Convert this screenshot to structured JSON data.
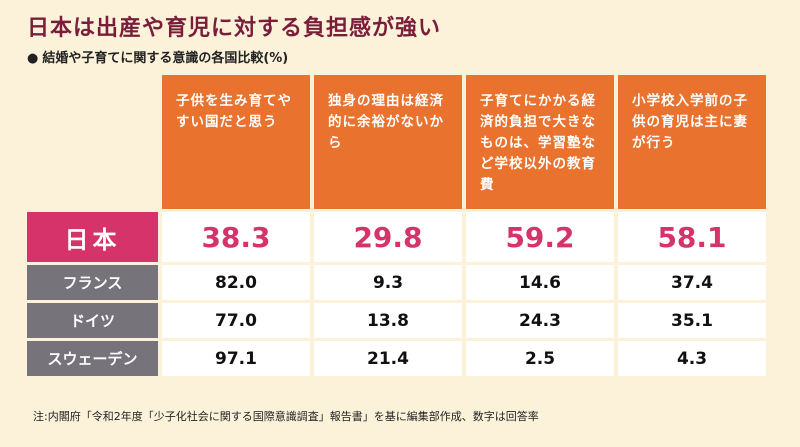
{
  "title": "日本は出産や育児に対する負担感が強い",
  "subtitle": "結婚や子育てに関する意識の各国比較(%)",
  "bullet": "●",
  "columns": [
    "子供を生み育てやすい国だと思う",
    "独身の理由は経済的に余裕がないから",
    "子育てにかかる経済的負担で大きなものは、学習塾など学校以外の教育費",
    "小学校入学前の子供の育児は主に妻が行う"
  ],
  "rows": [
    {
      "country": "日本",
      "values": [
        "38.3",
        "29.8",
        "59.2",
        "58.1"
      ]
    },
    {
      "country": "フランス",
      "values": [
        "82.0",
        "9.3",
        "14.6",
        "37.4"
      ]
    },
    {
      "country": "ドイツ",
      "values": [
        "77.0",
        "13.8",
        "24.3",
        "35.1"
      ]
    },
    {
      "country": "スウェーデン",
      "values": [
        "97.1",
        "21.4",
        "2.5",
        "4.3"
      ]
    }
  ],
  "note": "注:内閣府「令和2年度「少子化社会に関する国際意識調査」報告書」を基に編集部作成、数字は回答率",
  "colors": {
    "background": "#fbf2d9",
    "title": "#7a1d3a",
    "header": "#e8722e",
    "japan": "#d6336b",
    "other_rows": "#76737a"
  },
  "chart_data": {
    "type": "table",
    "title": "日本は出産や育児に対する負担感が強い",
    "subtitle": "結婚や子育てに関する意識の各国比較(%)",
    "columns": [
      "子供を生み育てやすい国だと思う",
      "独身の理由は経済的に余裕がないから",
      "子育てにかかる経済的負担で大きなものは、学習塾など学校以外の教育費",
      "小学校入学前の子供の育児は主に妻が行う"
    ],
    "rows": [
      {
        "country": "日本",
        "values": [
          38.3,
          29.8,
          59.2,
          58.1
        ]
      },
      {
        "country": "フランス",
        "values": [
          82.0,
          9.3,
          14.6,
          37.4
        ]
      },
      {
        "country": "ドイツ",
        "values": [
          77.0,
          13.8,
          24.3,
          35.1
        ]
      },
      {
        "country": "スウェーデン",
        "values": [
          97.1,
          21.4,
          2.5,
          4.3
        ]
      }
    ]
  }
}
